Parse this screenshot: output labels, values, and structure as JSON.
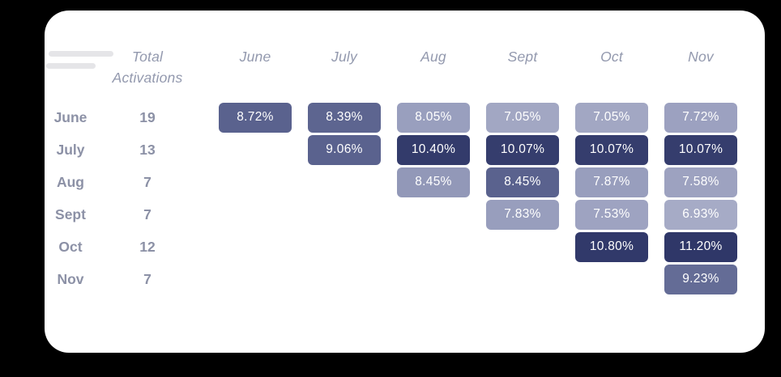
{
  "colors": {
    "background": "#000000",
    "card": "#ffffff",
    "palette_low": "#a6abc6",
    "palette_mid": "#5a628e",
    "palette_high": "#2f3768"
  },
  "chart_data": {
    "type": "heatmap",
    "title": "",
    "row_axis_header": "Total Activations",
    "columns": [
      "June",
      "July",
      "Aug",
      "Sept",
      "Oct",
      "Nov"
    ],
    "legend_position": "none",
    "rows": [
      {
        "label": "June",
        "total": "19",
        "cells": [
          {
            "col": "June",
            "value": "8.72%",
            "pct": 8.72,
            "color": "#5a628e"
          },
          {
            "col": "July",
            "value": "8.39%",
            "pct": 8.39,
            "color": "#5d6590"
          },
          {
            "col": "Aug",
            "value": "8.05%",
            "pct": 8.05,
            "color": "#999fbe"
          },
          {
            "col": "Sept",
            "value": "7.05%",
            "pct": 7.05,
            "color": "#a2a7c3"
          },
          {
            "col": "Oct",
            "value": "7.05%",
            "pct": 7.05,
            "color": "#a2a7c3"
          },
          {
            "col": "Nov",
            "value": "7.72%",
            "pct": 7.72,
            "color": "#9ca1c0"
          }
        ]
      },
      {
        "label": "July",
        "total": "13",
        "cells": [
          {
            "col": "July",
            "value": "9.06%",
            "pct": 9.06,
            "color": "#5a628e"
          },
          {
            "col": "Aug",
            "value": "10.40%",
            "pct": 10.4,
            "color": "#333b6b"
          },
          {
            "col": "Sept",
            "value": "10.07%",
            "pct": 10.07,
            "color": "#353d6d"
          },
          {
            "col": "Oct",
            "value": "10.07%",
            "pct": 10.07,
            "color": "#353d6d"
          },
          {
            "col": "Nov",
            "value": "10.07%",
            "pct": 10.07,
            "color": "#353d6d"
          }
        ]
      },
      {
        "label": "Aug",
        "total": "7",
        "cells": [
          {
            "col": "Aug",
            "value": "8.45%",
            "pct": 8.45,
            "color": "#9298b8"
          },
          {
            "col": "Sept",
            "value": "8.45%",
            "pct": 8.45,
            "color": "#5a628e"
          },
          {
            "col": "Oct",
            "value": "7.87%",
            "pct": 7.87,
            "color": "#989ebd"
          },
          {
            "col": "Nov",
            "value": "7.58%",
            "pct": 7.58,
            "color": "#9da2c0"
          }
        ]
      },
      {
        "label": "Sept",
        "total": "7",
        "cells": [
          {
            "col": "Sept",
            "value": "7.83%",
            "pct": 7.83,
            "color": "#989ebd"
          },
          {
            "col": "Oct",
            "value": "7.53%",
            "pct": 7.53,
            "color": "#9ea3c1"
          },
          {
            "col": "Nov",
            "value": "6.93%",
            "pct": 6.93,
            "color": "#a6abc6"
          }
        ]
      },
      {
        "label": "Oct",
        "total": "12",
        "cells": [
          {
            "col": "Oct",
            "value": "10.80%",
            "pct": 10.8,
            "color": "#31396a"
          },
          {
            "col": "Nov",
            "value": "11.20%",
            "pct": 11.2,
            "color": "#2f3768"
          }
        ]
      },
      {
        "label": "Nov",
        "total": "7",
        "cells": [
          {
            "col": "Nov",
            "value": "9.23%",
            "pct": 9.23,
            "color": "#646c96"
          }
        ]
      }
    ]
  }
}
